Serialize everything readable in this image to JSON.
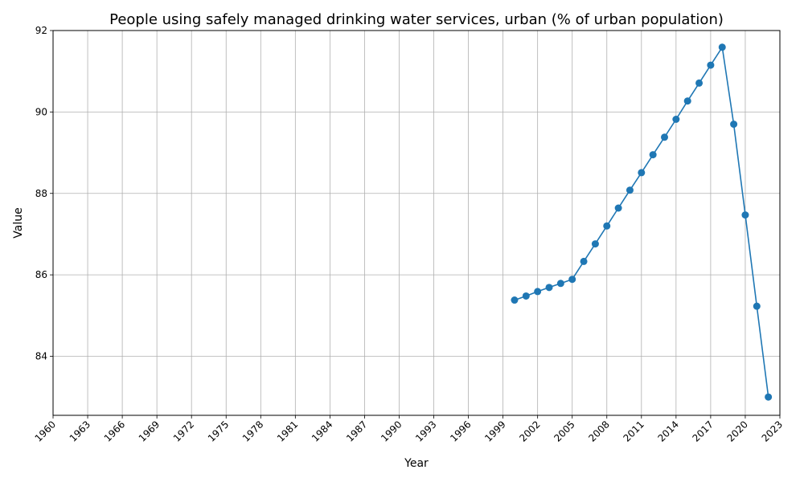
{
  "chart_data": {
    "type": "line",
    "title": "People using safely managed drinking water services, urban (% of urban population)",
    "xlabel": "Year",
    "ylabel": "Value",
    "xlim": [
      1960,
      2023
    ],
    "ylim": [
      82.55,
      92.0
    ],
    "x_ticks": [
      1960,
      1963,
      1966,
      1969,
      1972,
      1975,
      1978,
      1981,
      1984,
      1987,
      1990,
      1993,
      1996,
      1999,
      2002,
      2005,
      2008,
      2011,
      2014,
      2017,
      2020,
      2023
    ],
    "y_ticks": [
      84,
      86,
      88,
      90,
      92
    ],
    "grid": true,
    "color": "#1f77b4",
    "marker": "circle",
    "series": [
      {
        "x": [
          2000,
          2001,
          2002,
          2003,
          2004,
          2005,
          2006,
          2007,
          2008,
          2009,
          2010,
          2011,
          2012,
          2013,
          2014,
          2015,
          2016,
          2017,
          2018,
          2019,
          2020,
          2021,
          2022
        ],
        "values": [
          85.38,
          85.48,
          85.59,
          85.69,
          85.79,
          85.89,
          86.33,
          86.76,
          87.2,
          87.64,
          88.08,
          88.51,
          88.95,
          89.38,
          89.82,
          90.27,
          90.71,
          91.15,
          91.59,
          89.7,
          87.47,
          85.23,
          83.0
        ]
      }
    ]
  }
}
